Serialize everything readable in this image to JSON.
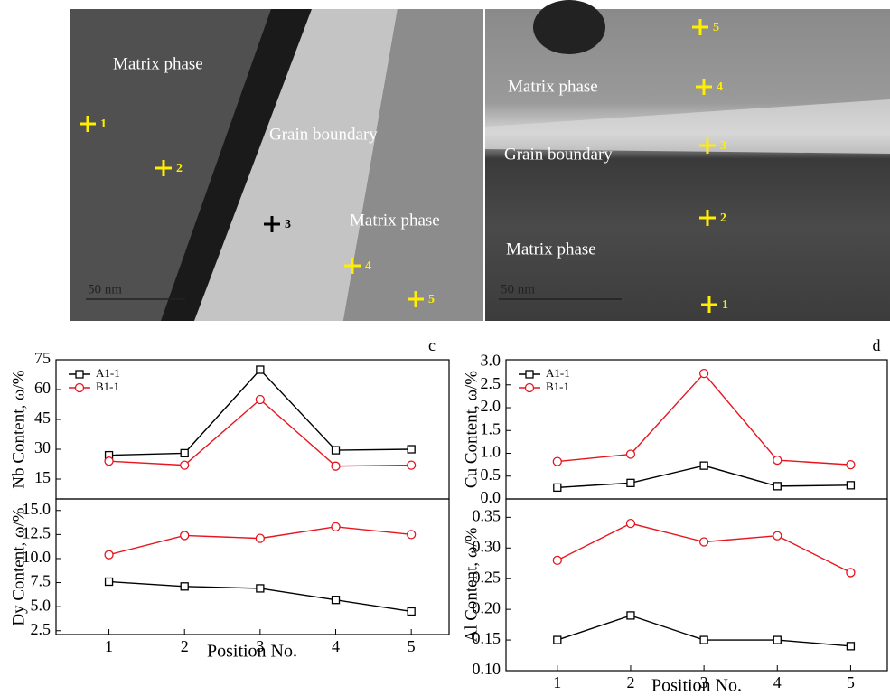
{
  "images": [
    {
      "labels": [
        "Matrix phase",
        "Grain boundary",
        "Matrix phase"
      ],
      "points": [
        "1",
        "2",
        "3",
        "4",
        "5"
      ],
      "scale": "50 nm"
    },
    {
      "labels": [
        "Matrix phase",
        "Grain boundary",
        "Matrix phase"
      ],
      "points": [
        "5",
        "4",
        "3",
        "2",
        "1"
      ],
      "scale": "50 nm"
    }
  ],
  "chart_data": [
    {
      "type": "line",
      "panel_label": "c",
      "ylabel": "Nb Content, ω/%",
      "x": [
        1,
        2,
        3,
        4,
        5
      ],
      "xlim": [
        0.3,
        5.5
      ],
      "ylim": [
        5,
        75
      ],
      "yticks": [
        15,
        30,
        45,
        60,
        75
      ],
      "legend": "upper left",
      "series": [
        {
          "name": "A1-1",
          "color": "#000000",
          "marker": "square",
          "values": [
            27,
            28,
            70,
            29.5,
            30
          ]
        },
        {
          "name": "B1-1",
          "color": "#e8141e",
          "marker": "circle",
          "values": [
            24,
            22,
            55,
            21.5,
            22
          ]
        }
      ]
    },
    {
      "type": "line",
      "ylabel": "Dy Content, ω/%",
      "xlabel": "Position No.",
      "x": [
        1,
        2,
        3,
        4,
        5
      ],
      "xlim": [
        0.3,
        5.5
      ],
      "xticks": [
        1,
        2,
        3,
        4,
        5
      ],
      "ylim": [
        2.1,
        16.2
      ],
      "yticks": [
        2.5,
        {
          "value": 5,
          "label": "5.0"
        },
        7.5,
        {
          "value": 10,
          "label": "10.0"
        },
        12.5,
        {
          "value": 15,
          "label": "15.0"
        }
      ],
      "legend": false,
      "series": [
        {
          "name": "A1-1",
          "color": "#000000",
          "marker": "square",
          "values": [
            7.6,
            7.1,
            6.9,
            5.7,
            4.5
          ]
        },
        {
          "name": "B1-1",
          "color": "#e8141e",
          "marker": "circle",
          "values": [
            10.4,
            12.4,
            12.1,
            13.3,
            12.5
          ]
        }
      ]
    },
    {
      "type": "line",
      "panel_label": "d",
      "ylabel": "Cu Content, ω/%",
      "x": [
        1,
        2,
        3,
        4,
        5
      ],
      "xlim": [
        0.3,
        5.5
      ],
      "ylim": [
        0,
        3.05
      ],
      "yticks": [
        {
          "value": 0,
          "label": "0.0"
        },
        0.5,
        {
          "value": 1,
          "label": "1.0"
        },
        1.5,
        {
          "value": 2,
          "label": "2.0"
        },
        2.5,
        {
          "value": 3,
          "label": "3.0"
        }
      ],
      "legend": "upper left",
      "series": [
        {
          "name": "A1-1",
          "color": "#000000",
          "marker": "square",
          "values": [
            0.25,
            0.35,
            0.73,
            0.28,
            0.3
          ]
        },
        {
          "name": "B1-1",
          "color": "#e8141e",
          "marker": "circle",
          "values": [
            0.82,
            0.98,
            2.75,
            0.85,
            0.75
          ]
        }
      ]
    },
    {
      "type": "line",
      "ylabel": "Al Content, ω/%",
      "xlabel": "Position No.",
      "x": [
        1,
        2,
        3,
        4,
        5
      ],
      "xlim": [
        0.3,
        5.5
      ],
      "xticks": [
        1,
        2,
        3,
        4,
        5
      ],
      "ylim": [
        0.1,
        0.38
      ],
      "yticks": [
        {
          "value": 0.1,
          "label": "0.10"
        },
        0.15,
        {
          "value": 0.2,
          "label": "0.20"
        },
        0.25,
        {
          "value": 0.3,
          "label": "0.30"
        },
        0.35
      ],
      "legend": false,
      "series": [
        {
          "name": "A1-1",
          "color": "#000000",
          "marker": "square",
          "values": [
            0.15,
            0.19,
            0.15,
            0.15,
            0.14
          ]
        },
        {
          "name": "B1-1",
          "color": "#e8141e",
          "marker": "circle",
          "values": [
            0.28,
            0.34,
            0.31,
            0.32,
            0.26
          ]
        }
      ]
    }
  ]
}
